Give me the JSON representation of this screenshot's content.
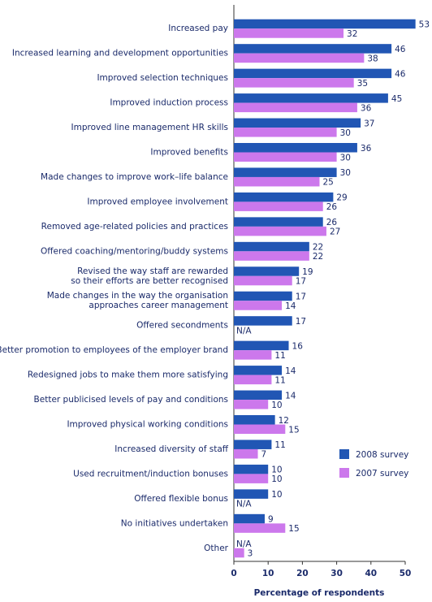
{
  "chart_data": {
    "type": "bar",
    "orientation": "horizontal",
    "x_label": "Percentage of respondents",
    "categories": [
      "Increased pay",
      "Increased learning and development opportunities",
      "Improved selection techniques",
      "Improved induction process",
      "Improved line management HR skills",
      "Improved benefits",
      "Made changes to improve work–life balance",
      "Improved employee involvement",
      "Removed age-related policies and practices",
      "Offered coaching/mentoring/buddy systems",
      "Revised the way staff are rewarded\nso their efforts are better recognised",
      "Made changes in the way the organisation\napproaches career management",
      "Offered secondments",
      "Better promotion to employees of the employer brand",
      "Redesigned jobs to make them more satisfying",
      "Better publicised levels of pay and conditions",
      "Improved physical working conditions",
      "Increased diversity of staff",
      "Used recruitment/induction bonuses",
      "Offered flexible bonus",
      "No initiatives undertaken",
      "Other"
    ],
    "series": [
      {
        "name": "2008 survey",
        "color": "#2156b4",
        "values": [
          53,
          46,
          46,
          45,
          37,
          36,
          30,
          29,
          26,
          22,
          19,
          17,
          17,
          16,
          14,
          14,
          12,
          11,
          10,
          10,
          9,
          null
        ],
        "value_labels": [
          "53",
          "46",
          "46",
          "45",
          "37",
          "36",
          "30",
          "29",
          "26",
          "22",
          "19",
          "17",
          "17",
          "16",
          "14",
          "14",
          "12",
          "11",
          "10",
          "10",
          "9",
          "N/A"
        ]
      },
      {
        "name": "2007 survey",
        "color": "#cc78ec",
        "values": [
          32,
          38,
          35,
          36,
          30,
          30,
          25,
          26,
          27,
          22,
          17,
          14,
          null,
          11,
          11,
          10,
          15,
          7,
          10,
          null,
          15,
          3
        ],
        "value_labels": [
          "32",
          "38",
          "35",
          "36",
          "30",
          "30",
          "25",
          "26",
          "27",
          "22",
          "17",
          "14",
          "N/A",
          "11",
          "11",
          "10",
          "15",
          "7",
          "10",
          "N/A",
          "15",
          "3"
        ]
      }
    ],
    "xlim": [
      0,
      50
    ],
    "xticks": [
      0,
      10,
      20,
      30,
      40,
      50
    ],
    "legend": "lower right"
  }
}
